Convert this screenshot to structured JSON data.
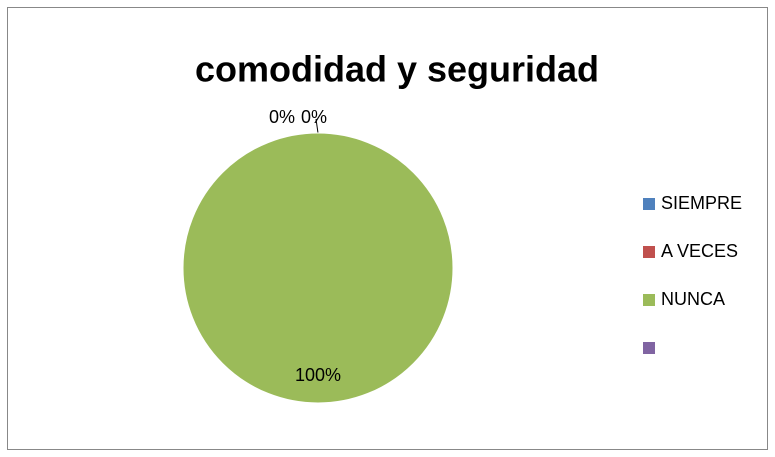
{
  "chart_data": {
    "type": "pie",
    "title": "comodidad y seguridad",
    "categories": [
      "SIEMPRE",
      "A VECES",
      "NUNCA",
      null
    ],
    "values": [
      0,
      0,
      100,
      null
    ],
    "value_labels": [
      "0%",
      "0%",
      "100%",
      null
    ],
    "colors": [
      "#4f81bd",
      "#c0504d",
      "#9bbb59",
      "#8064a2"
    ],
    "legend": "right"
  }
}
